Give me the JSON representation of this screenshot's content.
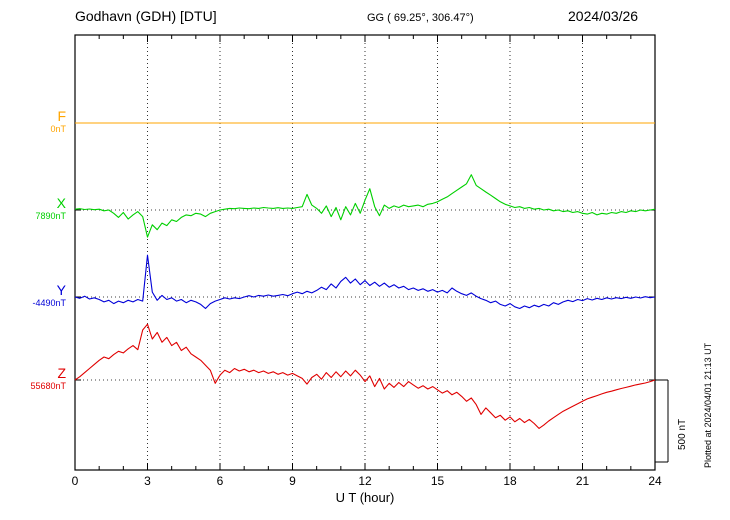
{
  "header": {
    "station": "Godhavn (GDH)  [DTU]",
    "coords": "GG ( 69.25°, 306.47°)",
    "date": "2024/03/26"
  },
  "footer_note": "Plotted at 2024/04/01 21:13 UT",
  "chart_data": {
    "type": "line",
    "title": "Godhavn (GDH) [DTU] magnetogram 2024/03/26",
    "xlabel": "U T (hour)",
    "x_range": [
      0,
      24
    ],
    "x_ticks": [
      0,
      3,
      6,
      9,
      12,
      15,
      18,
      21,
      24
    ],
    "grid": "dotted",
    "legend_position": "left-margin",
    "scale_reference": {
      "label": "500 nT",
      "nT": 500
    },
    "values_are": "nT offset from each trace baseline, sampled uniformly 0-24 UT",
    "series": [
      {
        "name": "F",
        "color": "#ffa500",
        "baseline_label": "0nT",
        "values": [
          0,
          0
        ]
      },
      {
        "name": "X",
        "color": "#00d000",
        "baseline_label": "7890nT",
        "values": [
          5,
          8,
          3,
          6,
          2,
          5,
          -5,
          0,
          -20,
          -45,
          -15,
          -55,
          -30,
          -10,
          -40,
          -165,
          -90,
          -120,
          -80,
          -95,
          -60,
          -70,
          -45,
          -30,
          -35,
          -20,
          -25,
          -40,
          -20,
          -10,
          0,
          5,
          10,
          8,
          12,
          10,
          8,
          12,
          10,
          15,
          12,
          10,
          14,
          10,
          12,
          10,
          15,
          20,
          95,
          30,
          10,
          -20,
          25,
          -40,
          15,
          -60,
          20,
          -30,
          40,
          -20,
          60,
          130,
          20,
          -35,
          30,
          10,
          25,
          15,
          30,
          20,
          25,
          30,
          20,
          35,
          40,
          50,
          65,
          80,
          100,
          120,
          140,
          160,
          215,
          150,
          130,
          110,
          90,
          70,
          50,
          35,
          25,
          15,
          20,
          10,
          15,
          5,
          10,
          0,
          5,
          -5,
          0,
          -10,
          -5,
          -15,
          -10,
          -20,
          -25,
          -15,
          -30,
          -20,
          -25,
          -15,
          -20,
          -10,
          -15,
          -5,
          -10,
          0,
          -5,
          0,
          5
        ]
      },
      {
        "name": "Y",
        "color": "#0000d8",
        "baseline_label": "-4490nT",
        "values": [
          0,
          -8,
          5,
          -12,
          -5,
          -15,
          -30,
          -20,
          -40,
          -25,
          -35,
          -20,
          -30,
          -15,
          -25,
          255,
          30,
          -20,
          10,
          -15,
          -5,
          -25,
          -15,
          -35,
          -20,
          -30,
          -45,
          -70,
          -40,
          -25,
          -15,
          -5,
          -12,
          -5,
          -10,
          0,
          8,
          0,
          10,
          5,
          12,
          5,
          10,
          15,
          8,
          20,
          30,
          20,
          35,
          25,
          40,
          60,
          45,
          80,
          55,
          95,
          120,
          85,
          110,
          75,
          100,
          70,
          90,
          65,
          85,
          60,
          75,
          55,
          65,
          45,
          55,
          40,
          50,
          35,
          45,
          30,
          40,
          25,
          55,
          35,
          20,
          10,
          25,
          5,
          -10,
          -20,
          -35,
          -25,
          -45,
          -55,
          -40,
          -60,
          -70,
          -55,
          -65,
          -50,
          -60,
          -45,
          -55,
          -35,
          -45,
          -30,
          -20,
          -28,
          -15,
          -22,
          -10,
          -18,
          -8,
          -15,
          -5,
          -12,
          -4,
          -10,
          -2,
          -8,
          0,
          -6,
          2,
          -4,
          0
        ]
      },
      {
        "name": "Z",
        "color": "#e00000",
        "baseline_label": "55680nT",
        "values": [
          0,
          20,
          45,
          70,
          95,
          120,
          140,
          130,
          155,
          175,
          165,
          190,
          210,
          185,
          305,
          340,
          250,
          290,
          230,
          260,
          210,
          230,
          180,
          200,
          160,
          140,
          120,
          90,
          60,
          -20,
          30,
          60,
          45,
          70,
          55,
          65,
          50,
          60,
          45,
          55,
          40,
          50,
          35,
          45,
          30,
          40,
          25,
          10,
          -25,
          15,
          35,
          5,
          45,
          15,
          50,
          20,
          55,
          25,
          60,
          30,
          -10,
          25,
          -40,
          10,
          -55,
          -20,
          -45,
          -15,
          -40,
          -10,
          -30,
          -50,
          -35,
          -55,
          -40,
          -60,
          -80,
          -65,
          -90,
          -75,
          -100,
          -130,
          -110,
          -150,
          -210,
          -170,
          -200,
          -230,
          -215,
          -245,
          -225,
          -255,
          -235,
          -260,
          -240,
          -265,
          -295,
          -275,
          -250,
          -230,
          -210,
          -190,
          -175,
          -160,
          -145,
          -130,
          -115,
          -105,
          -95,
          -85,
          -75,
          -68,
          -60,
          -52,
          -45,
          -38,
          -30,
          -24,
          -18,
          -10,
          0
        ]
      }
    ]
  }
}
